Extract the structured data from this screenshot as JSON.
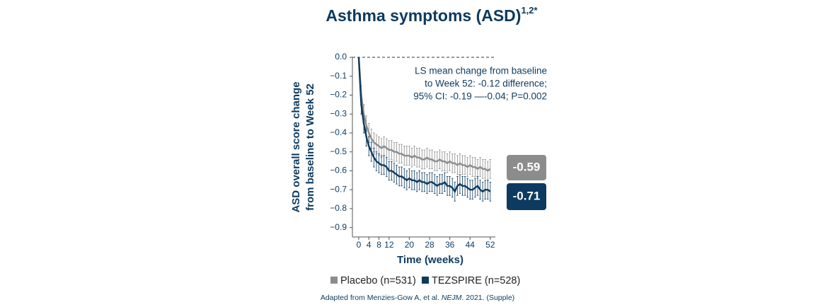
{
  "chart_data": {
    "type": "line",
    "title": "Asthma symptoms (ASD)",
    "title_superscript": "1,2*",
    "y_label": [
      "ASD overall score change",
      "from baseline to Week 52"
    ],
    "x_label": "Time (weeks)",
    "annotation": [
      "LS mean change from baseline",
      "to Week 52: -0.12 difference;",
      "95% CI: -0.19 —-0.04; P=0.002"
    ],
    "footnote": [
      "Adapted from Menzies-Gow A, et al. ",
      "NEJM",
      ". 2021. (Supple)"
    ],
    "xlim": [
      -2.5,
      54
    ],
    "xticks": [
      0,
      4,
      8,
      12,
      20,
      28,
      36,
      44,
      52
    ],
    "ylim": [
      -0.95,
      0
    ],
    "yticks": [
      {
        "value": 0,
        "label": "0.0"
      },
      {
        "value": -0.1,
        "label": "−0.1"
      },
      {
        "value": -0.2,
        "label": "−0.2"
      },
      {
        "value": -0.3,
        "label": "−0.3"
      },
      {
        "value": -0.4,
        "label": "−0.4"
      },
      {
        "value": -0.5,
        "label": "−0.5"
      },
      {
        "value": -0.6,
        "label": "−0.6"
      },
      {
        "value": -0.7,
        "label": "−0.7"
      },
      {
        "value": -0.8,
        "label": "−0.8"
      },
      {
        "value": -0.9,
        "label": "−0.9"
      }
    ],
    "x": [
      0,
      1,
      2,
      3,
      4,
      5,
      6,
      7,
      8,
      9,
      10,
      11,
      12,
      13,
      14,
      15,
      16,
      17,
      18,
      19,
      20,
      21,
      22,
      23,
      24,
      25,
      26,
      27,
      28,
      29,
      30,
      31,
      32,
      33,
      34,
      35,
      36,
      37,
      38,
      39,
      40,
      41,
      42,
      43,
      44,
      45,
      46,
      47,
      48,
      49,
      50,
      51,
      52
    ],
    "series": [
      {
        "name": "Placebo (n=531)",
        "color": "#8c8c8c",
        "end_label": "-0.59",
        "values": [
          0,
          -0.2,
          -0.3,
          -0.36,
          -0.4,
          -0.43,
          -0.45,
          -0.46,
          -0.47,
          -0.48,
          -0.47,
          -0.48,
          -0.49,
          -0.49,
          -0.5,
          -0.5,
          -0.51,
          -0.51,
          -0.52,
          -0.52,
          -0.52,
          -0.53,
          -0.52,
          -0.53,
          -0.53,
          -0.54,
          -0.54,
          -0.53,
          -0.54,
          -0.54,
          -0.55,
          -0.55,
          -0.54,
          -0.55,
          -0.55,
          -0.56,
          -0.55,
          -0.56,
          -0.56,
          -0.57,
          -0.56,
          -0.57,
          -0.57,
          -0.58,
          -0.57,
          -0.58,
          -0.58,
          -0.59,
          -0.58,
          -0.59,
          -0.59,
          -0.6,
          -0.59
        ],
        "errors": [
          0,
          0.05,
          0.05,
          0.05,
          0.05,
          0.05,
          0.05,
          0.05,
          0.05,
          0.05,
          0.05,
          0.05,
          0.05,
          0.05,
          0.05,
          0.05,
          0.05,
          0.05,
          0.05,
          0.05,
          0.05,
          0.05,
          0.05,
          0.05,
          0.05,
          0.05,
          0.05,
          0.05,
          0.05,
          0.05,
          0.05,
          0.05,
          0.05,
          0.05,
          0.05,
          0.05,
          0.05,
          0.05,
          0.05,
          0.05,
          0.05,
          0.05,
          0.05,
          0.05,
          0.05,
          0.05,
          0.05,
          0.05,
          0.05,
          0.05,
          0.05,
          0.05,
          0.05
        ]
      },
      {
        "name": "TEZSPIRE (n=528)",
        "color": "#0d3a5f",
        "end_label": "-0.71",
        "values": [
          0,
          -0.25,
          -0.35,
          -0.42,
          -0.47,
          -0.5,
          -0.53,
          -0.55,
          -0.56,
          -0.57,
          -0.57,
          -0.58,
          -0.6,
          -0.6,
          -0.61,
          -0.62,
          -0.63,
          -0.63,
          -0.64,
          -0.65,
          -0.64,
          -0.65,
          -0.65,
          -0.66,
          -0.65,
          -0.66,
          -0.66,
          -0.67,
          -0.66,
          -0.66,
          -0.67,
          -0.68,
          -0.67,
          -0.67,
          -0.66,
          -0.68,
          -0.68,
          -0.69,
          -0.71,
          -0.68,
          -0.67,
          -0.68,
          -0.68,
          -0.69,
          -0.7,
          -0.7,
          -0.69,
          -0.68,
          -0.7,
          -0.71,
          -0.7,
          -0.7,
          -0.71
        ],
        "errors": [
          0,
          0.05,
          0.05,
          0.05,
          0.05,
          0.05,
          0.05,
          0.05,
          0.05,
          0.05,
          0.05,
          0.05,
          0.05,
          0.05,
          0.05,
          0.05,
          0.05,
          0.05,
          0.05,
          0.05,
          0.05,
          0.05,
          0.05,
          0.05,
          0.05,
          0.05,
          0.05,
          0.05,
          0.05,
          0.05,
          0.05,
          0.05,
          0.05,
          0.05,
          0.05,
          0.05,
          0.05,
          0.05,
          0.05,
          0.05,
          0.05,
          0.05,
          0.05,
          0.05,
          0.05,
          0.05,
          0.05,
          0.05,
          0.05,
          0.05,
          0.05,
          0.05,
          0.05
        ]
      }
    ]
  }
}
